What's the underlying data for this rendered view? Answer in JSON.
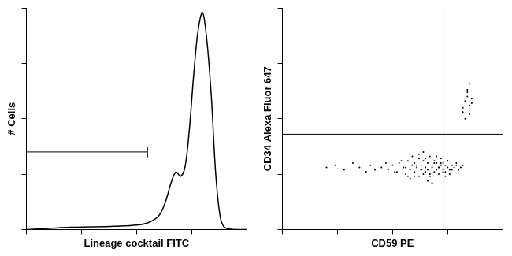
{
  "chart_data": [
    {
      "type": "line",
      "x": [
        0,
        10,
        20,
        30,
        40,
        50,
        55,
        60,
        63,
        66,
        68,
        70,
        72,
        74,
        76,
        78,
        80,
        82,
        84,
        86,
        88,
        90,
        95,
        100
      ],
      "values": [
        0,
        0.5,
        1,
        1.2,
        1.5,
        2,
        3,
        6,
        12,
        22,
        26,
        24,
        28,
        45,
        70,
        90,
        98,
        85,
        60,
        25,
        6,
        1,
        0,
        0
      ],
      "xlim": [
        0,
        100
      ],
      "ylim": [
        0,
        100
      ],
      "xticks": [
        0,
        25,
        50,
        75,
        100
      ],
      "yticks": [
        0,
        25,
        50,
        75,
        100
      ],
      "x_label": "Lineage cocktail FITC",
      "y_label": "# Cells",
      "color": "#000000",
      "grid": false,
      "tick_labels": false,
      "gate": {
        "x": [
          0,
          55
        ],
        "y": 35
      }
    },
    {
      "type": "scatter",
      "x": [
        45,
        48,
        50,
        52,
        53,
        55,
        56,
        57,
        58,
        59,
        60,
        60,
        61,
        62,
        62,
        63,
        63,
        64,
        64,
        65,
        65,
        66,
        66,
        67,
        67,
        68,
        68,
        69,
        69,
        70,
        70,
        71,
        71,
        72,
        72,
        73,
        73,
        74,
        74,
        75,
        75,
        76,
        76,
        77,
        78,
        79,
        80,
        81,
        82,
        47,
        51,
        54,
        57,
        59,
        61,
        63,
        65,
        67,
        69,
        71,
        73,
        75,
        77,
        79,
        58,
        62,
        66,
        70,
        74,
        64,
        68,
        72,
        56,
        60,
        20,
        24,
        28,
        32,
        35,
        38,
        40,
        42,
        82,
        83,
        84,
        85,
        86,
        84,
        83,
        85,
        84,
        86,
        82,
        85
      ],
      "values": [
        28,
        27,
        29,
        26,
        30,
        28,
        25,
        31,
        27,
        29,
        26,
        30,
        28,
        24,
        32,
        27,
        29,
        25,
        31,
        28,
        26,
        30,
        27,
        33,
        24,
        29,
        28,
        26,
        31,
        27,
        30,
        28,
        25,
        29,
        32,
        27,
        30,
        26,
        29,
        28,
        31,
        27,
        25,
        29,
        28,
        30,
        27,
        28,
        29,
        30,
        26,
        31,
        24,
        33,
        29,
        27,
        32,
        25,
        30,
        28,
        26,
        31,
        27,
        29,
        23,
        34,
        22,
        33,
        24,
        35,
        21,
        30,
        28,
        24,
        28,
        29,
        27,
        30,
        28,
        26,
        29,
        27,
        55,
        58,
        60,
        52,
        57,
        63,
        50,
        56,
        62,
        59,
        53,
        66
      ],
      "xlim": [
        0,
        100
      ],
      "ylim": [
        0,
        100
      ],
      "xticks": [
        0,
        25,
        50,
        75,
        100
      ],
      "yticks": [
        0,
        25,
        50,
        75,
        100
      ],
      "x_label": "CD59 PE",
      "y_label": "CD34 Alexa Fluor 647",
      "color": "#000000",
      "grid": false,
      "tick_labels": false,
      "marker": "circle",
      "quadrant": {
        "x": 73,
        "y": 43
      }
    }
  ]
}
